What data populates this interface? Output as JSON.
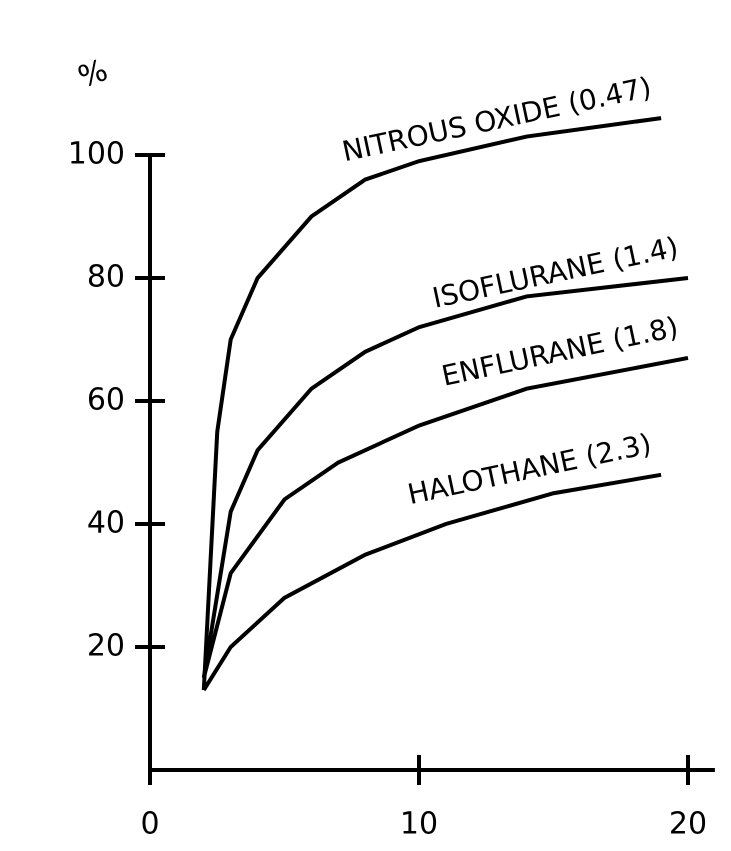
{
  "chart_data": {
    "type": "line",
    "ylabel": "%",
    "xlim": [
      0,
      21
    ],
    "ylim": [
      0,
      110
    ],
    "xticks": [
      0,
      10,
      20
    ],
    "yticks": [
      20,
      40,
      60,
      80,
      100
    ],
    "series": [
      {
        "name": "NITROUS OXIDE (0.47)",
        "color": "#000000",
        "x": [
          2,
          2.5,
          3,
          4,
          6,
          8,
          10,
          14,
          19
        ],
        "values": [
          13,
          55,
          70,
          80,
          90,
          96,
          99,
          103,
          106
        ]
      },
      {
        "name": "ISOFLURANE (1.4)",
        "color": "#000000",
        "x": [
          2,
          3,
          4,
          6,
          8,
          10,
          14,
          20
        ],
        "values": [
          15,
          42,
          52,
          62,
          68,
          72,
          77,
          80
        ]
      },
      {
        "name": "ENFLURANE (1.8)",
        "color": "#000000",
        "x": [
          2,
          3,
          5,
          7,
          10,
          14,
          20
        ],
        "values": [
          15,
          32,
          44,
          50,
          56,
          62,
          67
        ]
      },
      {
        "name": "HALOTHANE (2.3)",
        "color": "#000000",
        "x": [
          2,
          3,
          5,
          8,
          11,
          15,
          19
        ],
        "values": [
          13,
          20,
          28,
          35,
          40,
          45,
          48
        ]
      }
    ]
  }
}
